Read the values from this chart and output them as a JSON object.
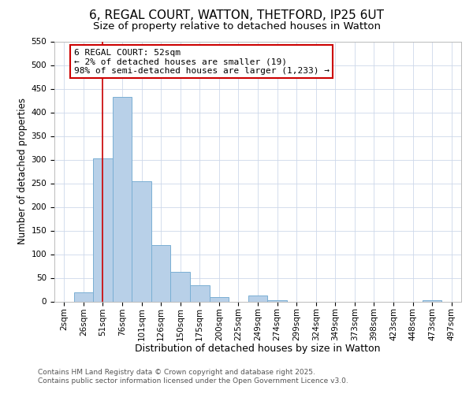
{
  "title": "6, REGAL COURT, WATTON, THETFORD, IP25 6UT",
  "subtitle": "Size of property relative to detached houses in Watton",
  "xlabel": "Distribution of detached houses by size in Watton",
  "ylabel": "Number of detached properties",
  "bar_color": "#b8d0e8",
  "bar_edge_color": "#7aafd4",
  "background_color": "#ffffff",
  "grid_color": "#cdd8ea",
  "categories": [
    "2sqm",
    "26sqm",
    "51sqm",
    "76sqm",
    "101sqm",
    "126sqm",
    "150sqm",
    "175sqm",
    "200sqm",
    "225sqm",
    "249sqm",
    "274sqm",
    "299sqm",
    "324sqm",
    "349sqm",
    "373sqm",
    "398sqm",
    "423sqm",
    "448sqm",
    "473sqm",
    "497sqm"
  ],
  "bar_values": [
    0,
    19,
    302,
    432,
    254,
    120,
    63,
    34,
    10,
    0,
    12,
    3,
    0,
    0,
    0,
    0,
    0,
    0,
    0,
    3,
    0
  ],
  "ylim": [
    0,
    550
  ],
  "yticks": [
    0,
    50,
    100,
    150,
    200,
    250,
    300,
    350,
    400,
    450,
    500,
    550
  ],
  "vline_x_idx": 2,
  "vline_color": "#cc0000",
  "annotation_title": "6 REGAL COURT: 52sqm",
  "annotation_line1": "← 2% of detached houses are smaller (19)",
  "annotation_line2": "98% of semi-detached houses are larger (1,233) →",
  "annotation_box_color": "#ffffff",
  "annotation_box_edge_color": "#cc0000",
  "footer_line1": "Contains HM Land Registry data © Crown copyright and database right 2025.",
  "footer_line2": "Contains public sector information licensed under the Open Government Licence v3.0.",
  "title_fontsize": 11,
  "subtitle_fontsize": 9.5,
  "xlabel_fontsize": 9,
  "ylabel_fontsize": 8.5,
  "tick_fontsize": 7.5,
  "annotation_fontsize": 8,
  "footer_fontsize": 6.5
}
